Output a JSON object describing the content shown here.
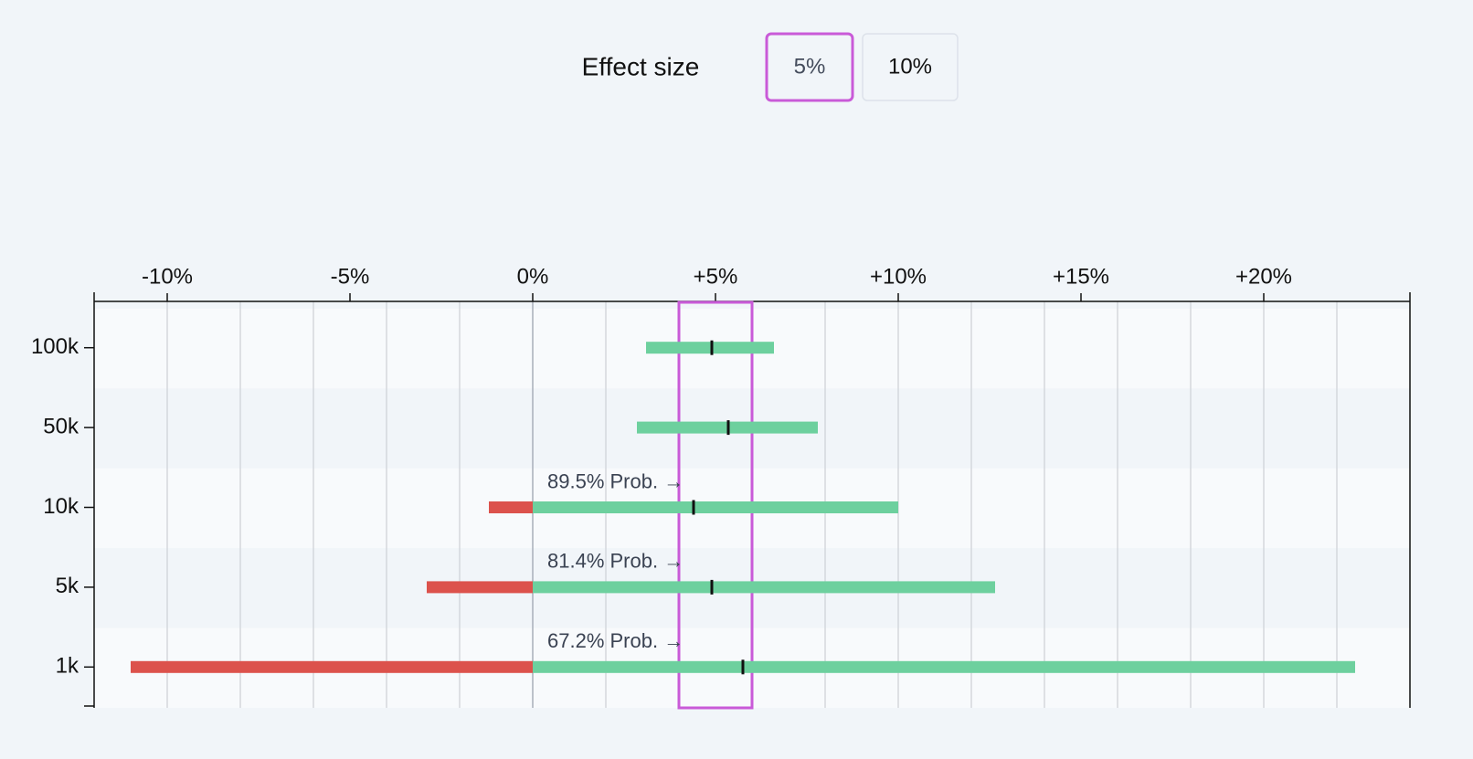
{
  "controls": {
    "label": "Effect size",
    "options": [
      "5%",
      "10%"
    ],
    "selected": 0
  },
  "chart_data": {
    "type": "interval",
    "categories": [
      "100k",
      "50k",
      "10k",
      "5k",
      "1k"
    ],
    "low": [
      3.1,
      2.85,
      -1.2,
      -2.9,
      -11
    ],
    "high": [
      6.6,
      7.8,
      10,
      12.65,
      22.5
    ],
    "estimate": [
      4.9,
      5.35,
      4.4,
      4.9,
      5.75
    ],
    "annotations": [
      null,
      null,
      "89.5% Prob. →",
      "81.4% Prob. →",
      "67.2% Prob. →"
    ],
    "xlim": [
      -12,
      24
    ],
    "xticks": [
      {
        "value": -10,
        "label": "-10%"
      },
      {
        "value": -5,
        "label": "-5%"
      },
      {
        "value": 0,
        "label": "0%"
      },
      {
        "value": 5,
        "label": "+5%"
      },
      {
        "value": 10,
        "label": "+10%"
      },
      {
        "value": 15,
        "label": "+15%"
      },
      {
        "value": 20,
        "label": "+20%"
      }
    ],
    "grid_x": [
      -10,
      -8,
      -6,
      -4,
      -2,
      0,
      2,
      4,
      6,
      8,
      10,
      12,
      14,
      16,
      18,
      20,
      22
    ],
    "highlight": [
      4,
      6
    ],
    "positive_color": "#6dd09e",
    "negative_color": "#dc524c",
    "estimate_color": "#111111",
    "highlight_color": "#c95ad8"
  }
}
